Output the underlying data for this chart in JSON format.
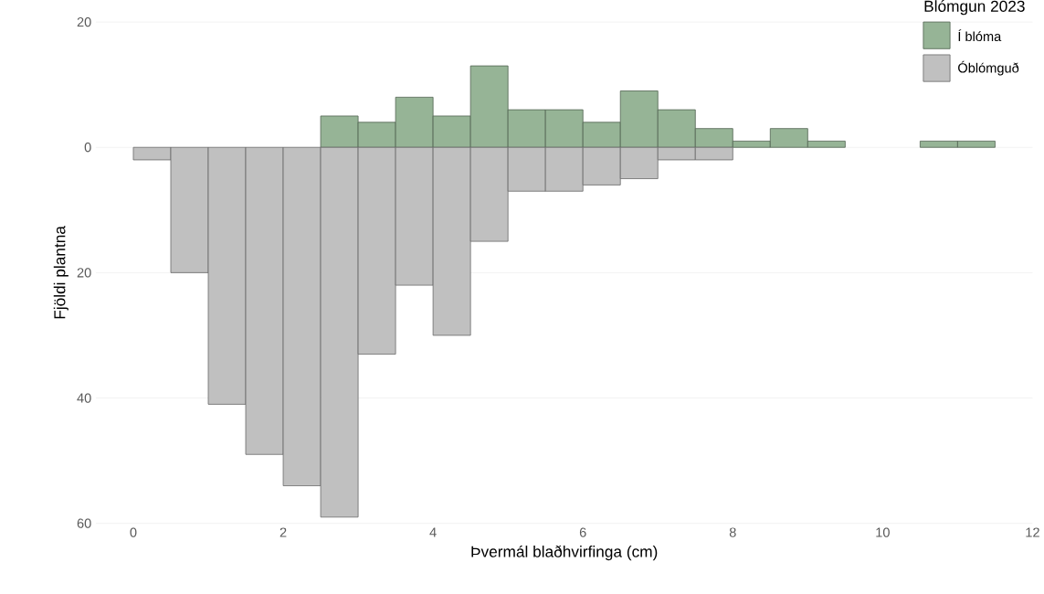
{
  "chart_data": {
    "type": "histogram",
    "xlabel": "Þvermál blaðhvirfinga (cm)",
    "ylabel": "Fjöldi plantna",
    "legend_title": "Blómgun 2023",
    "bins": [
      0,
      0.5,
      1,
      1.5,
      2,
      2.5,
      3,
      3.5,
      4,
      4.5,
      5,
      5.5,
      6,
      6.5,
      7,
      7.5,
      8,
      8.5,
      9,
      9.5,
      10,
      10.5,
      11,
      11.5
    ],
    "series": [
      {
        "name": "Í blóma",
        "color": "#96b496",
        "values": [
          0,
          0,
          0,
          0,
          0,
          5,
          4,
          8,
          5,
          13,
          6,
          6,
          4,
          9,
          6,
          3,
          1,
          3,
          1,
          0,
          0,
          1,
          1
        ]
      },
      {
        "name": "Óblómguð",
        "color": "#c0c0c0",
        "values": [
          -2,
          -20,
          -41,
          -49,
          -54,
          -59,
          -33,
          -22,
          -30,
          -15,
          -7,
          -7,
          -6,
          -5,
          -2,
          -2,
          0,
          0,
          0,
          0,
          0,
          0,
          0
        ]
      }
    ],
    "xlim": [
      -0.5,
      12
    ],
    "ylim": [
      -60,
      20
    ],
    "xticks": [
      0,
      2,
      4,
      6,
      8,
      10,
      12
    ],
    "yticks": [
      {
        "value": 20,
        "label": "20"
      },
      0,
      {
        "value": -20,
        "label": "20"
      },
      {
        "value": -40,
        "label": "40"
      },
      {
        "value": -60,
        "label": "60"
      }
    ],
    "grid": "y",
    "legend": "top right"
  }
}
